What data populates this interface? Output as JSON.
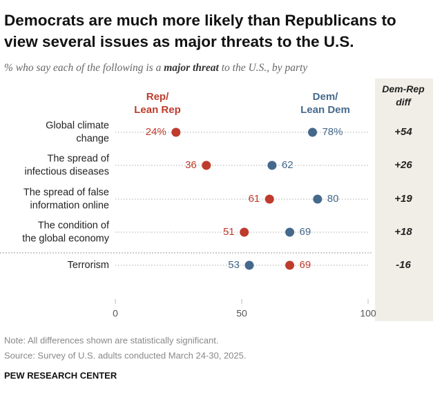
{
  "chart_data": {
    "type": "dot",
    "title": "Democrats are much more likely than Republicans to view several issues as major threats to the U.S.",
    "subtitle": [
      "% who say each of the following is a ",
      "major threat",
      " to the U.S., by party"
    ],
    "categories": [
      [
        "Global climate",
        "change"
      ],
      [
        "The spread of",
        "infectious diseases"
      ],
      [
        "The spread of false",
        "information online"
      ],
      [
        "The condition of",
        "the global economy"
      ],
      [
        "Terrorism"
      ]
    ],
    "series": [
      {
        "name": "Rep/Lean Rep",
        "color": "#bf3b2c",
        "values": [
          24,
          36,
          61,
          51,
          69
        ],
        "value_labels": [
          "24%",
          "36",
          "61",
          "51",
          "69"
        ]
      },
      {
        "name": "Dem/Lean Dem",
        "color": "#45698c",
        "values": [
          78,
          62,
          80,
          69,
          53
        ],
        "value_labels": [
          "78%",
          "62",
          "80",
          "69",
          "53"
        ]
      }
    ],
    "diff": {
      "title": "Dem-Rep diff",
      "values": [
        54,
        26,
        19,
        18,
        -16
      ],
      "value_labels": [
        "+54",
        "+26",
        "+19",
        "+18",
        "-16"
      ]
    },
    "xlim": [
      0,
      100
    ],
    "xticks": [
      0,
      50,
      100
    ],
    "note": "Note: All differences shown are statistically significant.",
    "source": "Source: Survey of U.S. adults conducted March 24-30, 2025.",
    "credit": "PEW RESEARCH CENTER"
  }
}
